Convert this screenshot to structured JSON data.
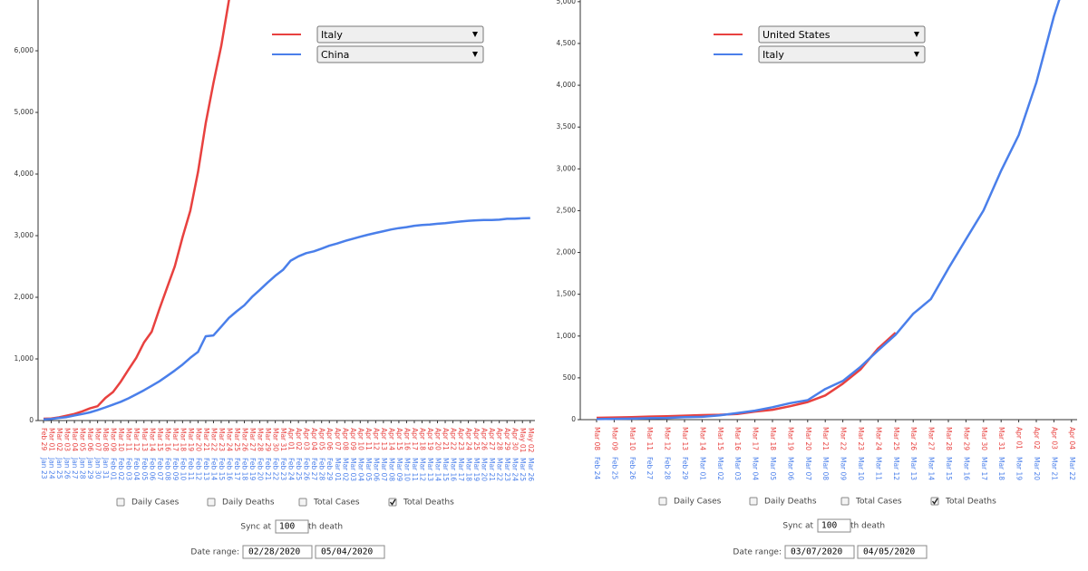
{
  "chart_data": [
    {
      "type": "line",
      "ylim": [
        0,
        6824
      ],
      "yticks": [
        0,
        {
          "value": 1000,
          "label": "1,000"
        },
        {
          "value": 2000,
          "label": "2,000"
        },
        {
          "value": 3000,
          "label": "3,000"
        },
        {
          "value": 4000,
          "label": "4,000"
        },
        {
          "value": 5000,
          "label": "5,000"
        },
        {
          "value": 6000,
          "label": "6,000"
        }
      ],
      "series": [
        {
          "name": "Italy",
          "color": "#e8413f",
          "dates": [
            "Feb 29",
            "Mar 01",
            "Mar 02",
            "Mar 03",
            "Mar 04",
            "Mar 05",
            "Mar 06",
            "Mar 07",
            "Mar 08",
            "Mar 09",
            "Mar 10",
            "Mar 11",
            "Mar 12",
            "Mar 13",
            "Mar 14",
            "Mar 15",
            "Mar 16",
            "Mar 17",
            "Mar 18",
            "Mar 19",
            "Mar 20",
            "Mar 21",
            "Mar 22",
            "Mar 23",
            "Mar 24",
            "Mar 25",
            "Mar 26",
            "Mar 27",
            "Mar 28",
            "Mar 29",
            "Mar 30",
            "Mar 31",
            "Apr 01",
            "Apr 02",
            "Apr 03",
            "Apr 04",
            "Apr 05",
            "Apr 06",
            "Apr 07",
            "Apr 08",
            "Apr 09",
            "Apr 10",
            "Apr 11",
            "Apr 12",
            "Apr 13",
            "Apr 14",
            "Apr 15",
            "Apr 16",
            "Apr 17",
            "Apr 18",
            "Apr 19",
            "Apr 20",
            "Apr 21",
            "Apr 22",
            "Apr 23",
            "Apr 24",
            "Apr 25",
            "Apr 26",
            "Apr 27",
            "Apr 28",
            "Apr 29",
            "Apr 30",
            "May 01",
            "May 02"
          ],
          "values": [
            29,
            34,
            52,
            79,
            107,
            148,
            197,
            233,
            366,
            463,
            631,
            827,
            1016,
            1266,
            1441,
            1809,
            2158,
            2503,
            2978,
            3405,
            4032,
            4825,
            5476,
            6077,
            6820,
            7503,
            null,
            null,
            null,
            null,
            null,
            null,
            null,
            null,
            null,
            null,
            null,
            null,
            null,
            null,
            null,
            null,
            null,
            null,
            null,
            null,
            null,
            null,
            null,
            null,
            null,
            null,
            null,
            null,
            null,
            null,
            null,
            null,
            null,
            null,
            null,
            null,
            null,
            null
          ]
        },
        {
          "name": "China",
          "color": "#4a7fea",
          "dates": [
            "Jan 23",
            "Jan 24",
            "Jan 25",
            "Jan 26",
            "Jan 27",
            "Jan 28",
            "Jan 29",
            "Jan 30",
            "Jan 31",
            "Feb 01",
            "Feb 02",
            "Feb 03",
            "Feb 04",
            "Feb 05",
            "Feb 06",
            "Feb 07",
            "Feb 08",
            "Feb 09",
            "Feb 10",
            "Feb 11",
            "Feb 12",
            "Feb 13",
            "Feb 14",
            "Feb 15",
            "Feb 16",
            "Feb 17",
            "Feb 18",
            "Feb 19",
            "Feb 20",
            "Feb 21",
            "Feb 22",
            "Feb 23",
            "Feb 24",
            "Feb 25",
            "Feb 26",
            "Feb 27",
            "Feb 28",
            "Feb 29",
            "Mar 01",
            "Mar 02",
            "Mar 03",
            "Mar 04",
            "Mar 05",
            "Mar 06",
            "Mar 07",
            "Mar 08",
            "Mar 09",
            "Mar 10",
            "Mar 11",
            "Mar 12",
            "Mar 13",
            "Mar 14",
            "Mar 15",
            "Mar 16",
            "Mar 17",
            "Mar 18",
            "Mar 19",
            "Mar 20",
            "Mar 21",
            "Mar 22",
            "Mar 23",
            "Mar 24",
            "Mar 25",
            "Mar 26"
          ],
          "values": [
            18,
            26,
            42,
            56,
            82,
            106,
            133,
            171,
            213,
            259,
            304,
            361,
            425,
            491,
            564,
            637,
            723,
            812,
            909,
            1017,
            1114,
            1368,
            1381,
            1524,
            1666,
            1772,
            1870,
            2006,
            2121,
            2239,
            2348,
            2445,
            2595,
            2665,
            2717,
            2746,
            2790,
            2837,
            2872,
            2914,
            2947,
            2983,
            3015,
            3044,
            3072,
            3100,
            3123,
            3139,
            3161,
            3172,
            3180,
            3193,
            3203,
            3217,
            3230,
            3241,
            3249,
            3253,
            3253,
            3259,
            3274,
            3274,
            3281,
            3285
          ]
        }
      ]
    },
    {
      "type": "line",
      "ylim": [
        0,
        5020
      ],
      "yticks": [
        0,
        500,
        {
          "value": 1000,
          "label": "1,000"
        },
        {
          "value": 1500,
          "label": "1,500"
        },
        {
          "value": 2000,
          "label": "2,000"
        },
        {
          "value": 2500,
          "label": "2,500"
        },
        {
          "value": 3000,
          "label": "3,000"
        },
        {
          "value": 3500,
          "label": "3,500"
        },
        {
          "value": 4000,
          "label": "4,000"
        },
        {
          "value": 4500,
          "label": "4,500"
        },
        {
          "value": 5000,
          "label": "5,000"
        }
      ],
      "series": [
        {
          "name": "United States",
          "color": "#e8413f",
          "dates": [
            "Mar 08",
            "Mar 09",
            "Mar 10",
            "Mar 11",
            "Mar 12",
            "Mar 13",
            "Mar 14",
            "Mar 15",
            "Mar 16",
            "Mar 17",
            "Mar 18",
            "Mar 19",
            "Mar 20",
            "Mar 21",
            "Mar 22",
            "Mar 23",
            "Mar 24",
            "Mar 25",
            "Mar 26",
            "Mar 27",
            "Mar 28",
            "Mar 29",
            "Mar 30",
            "Mar 31",
            "Apr 01",
            "Apr 02",
            "Apr 03",
            "Apr 04"
          ],
          "values": [
            22,
            26,
            30,
            37,
            41,
            48,
            54,
            59,
            68,
            96,
            118,
            160,
            210,
            290,
            430,
            600,
            850,
            1040,
            null,
            null,
            null,
            null,
            null,
            null,
            null,
            null,
            null,
            null
          ]
        },
        {
          "name": "Italy",
          "color": "#4a7fea",
          "dates": [
            "Feb 24",
            "Feb 25",
            "Feb 26",
            "Feb 27",
            "Feb 28",
            "Feb 29",
            "Mar 01",
            "Mar 02",
            "Mar 03",
            "Mar 04",
            "Mar 05",
            "Mar 06",
            "Mar 07",
            "Mar 08",
            "Mar 09",
            "Mar 10",
            "Mar 11",
            "Mar 12",
            "Mar 13",
            "Mar 14",
            "Mar 15",
            "Mar 16",
            "Mar 17",
            "Mar 18",
            "Mar 19",
            "Mar 20",
            "Mar 21",
            "Mar 22"
          ],
          "values": [
            7,
            10,
            12,
            17,
            21,
            29,
            34,
            52,
            79,
            107,
            148,
            197,
            233,
            366,
            463,
            631,
            827,
            1016,
            1266,
            1441,
            1809,
            2158,
            2503,
            2978,
            3405,
            4032,
            4825,
            5476
          ]
        }
      ]
    }
  ],
  "controls": [
    {
      "checkboxes": [
        {
          "label": "Daily Cases",
          "checked": false
        },
        {
          "label": "Daily Deaths",
          "checked": false
        },
        {
          "label": "Total Cases",
          "checked": false
        },
        {
          "label": "Total Deaths",
          "checked": true
        }
      ],
      "sync_label": "Sync at",
      "sync_value": 100,
      "sync_suffix": "th death",
      "date_range_label": "Date range:",
      "start": "02/28/2020",
      "end": "05/04/2020"
    },
    {
      "checkboxes": [
        {
          "label": "Daily Cases",
          "checked": false
        },
        {
          "label": "Daily Deaths",
          "checked": false
        },
        {
          "label": "Total Cases",
          "checked": false
        },
        {
          "label": "Total Deaths",
          "checked": true
        }
      ],
      "sync_label": "Sync at",
      "sync_value": 100,
      "sync_suffix": "th death",
      "date_range_label": "Date range:",
      "start": "03/07/2020",
      "end": "04/05/2020"
    }
  ]
}
